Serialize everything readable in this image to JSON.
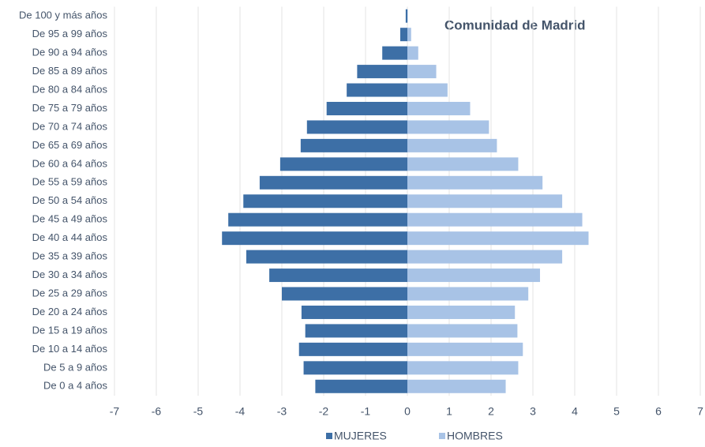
{
  "chart_data": {
    "type": "bar",
    "orientation": "horizontal",
    "title": "Comunidad de Madrid",
    "categories": [
      "De 100 y más años",
      "De 95 a 99 años",
      "De 90 a 94 años",
      "De 85 a 89 años",
      "De 80 a 84 años",
      "De 75 a 79 años",
      "De 70 a 74 años",
      "De 65 a 69 años",
      "De 60 a 64 años",
      "De 55 a 59 años",
      "De 50 a 54 años",
      "De 45 a 49 años",
      "De 40 a 44 años",
      "De 35 a 39 años",
      "De 30 a 34 años",
      "De 25 a 29 años",
      "De 20 a 24 años",
      "De 15 a 19 años",
      "De 10 a 14 años",
      "De 5 a 9 años",
      "De 0 a 4 años"
    ],
    "series": [
      {
        "name": "MUJERES",
        "color": "#3d6fa6",
        "values": [
          -0.04,
          -0.17,
          -0.6,
          -1.2,
          -1.45,
          -1.93,
          -2.4,
          -2.55,
          -3.04,
          -3.53,
          -3.92,
          -4.28,
          -4.43,
          -3.85,
          -3.3,
          -3.0,
          -2.53,
          -2.44,
          -2.59,
          -2.48,
          -2.2
        ]
      },
      {
        "name": "HOMBRES",
        "color": "#a8c3e6",
        "values": [
          0.01,
          0.09,
          0.26,
          0.69,
          0.96,
          1.5,
          1.95,
          2.14,
          2.65,
          3.23,
          3.7,
          4.18,
          4.33,
          3.7,
          3.17,
          2.89,
          2.57,
          2.63,
          2.76,
          2.65,
          2.35
        ]
      }
    ],
    "xlim": [
      -7,
      7
    ],
    "xticks": [
      -7,
      -6,
      -5,
      -4,
      -3,
      -2,
      -1,
      0,
      1,
      2,
      3,
      4,
      5,
      6,
      7
    ],
    "grid": true,
    "legend": "bottom"
  }
}
